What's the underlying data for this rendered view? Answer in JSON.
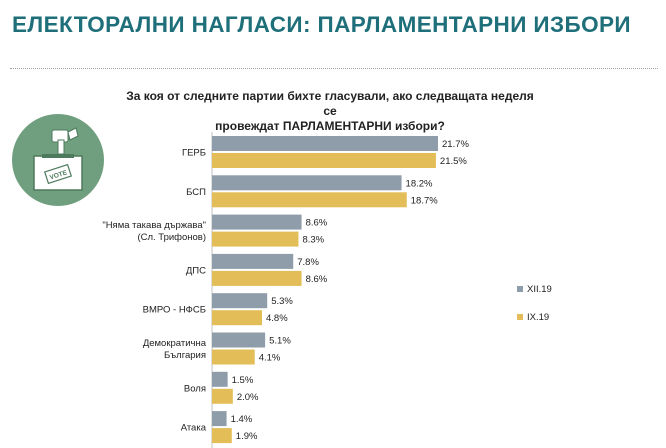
{
  "header": {
    "title": "ЕЛЕКТОРАЛНИ НАГЛАСИ: ПАРЛАМЕНТАРНИ ИЗБОРИ"
  },
  "logo": {
    "icon": "ballot-box-icon",
    "vote_text": "VOTE"
  },
  "chart_data": {
    "type": "bar",
    "orientation": "horizontal",
    "title_lines": [
      "За коя от следните партии бихте гласували, ако следващата неделя се",
      "провеждат ПАРЛАМЕНТАРНИ избори?"
    ],
    "categories": [
      [
        "ГЕРБ"
      ],
      [
        "БСП"
      ],
      [
        "\"Няма такава държава\"",
        "(Сл. Трифонов)"
      ],
      [
        "ДПС"
      ],
      [
        "ВМРО - НФСБ"
      ],
      [
        "Демократична",
        "България"
      ],
      [
        "Воля"
      ],
      [
        "Атака"
      ]
    ],
    "series": [
      {
        "name": "XII.19",
        "color": "#8f9caa",
        "values": [
          21.7,
          18.2,
          8.6,
          7.8,
          5.3,
          5.1,
          1.5,
          1.4
        ]
      },
      {
        "name": "IX.19",
        "color": "#e3bd57",
        "values": [
          21.5,
          18.7,
          8.3,
          8.6,
          4.8,
          4.1,
          2.0,
          1.9
        ]
      }
    ],
    "value_suffix": "%",
    "xlim": [
      0,
      21.7
    ],
    "legend_position": "right",
    "grid": false
  }
}
